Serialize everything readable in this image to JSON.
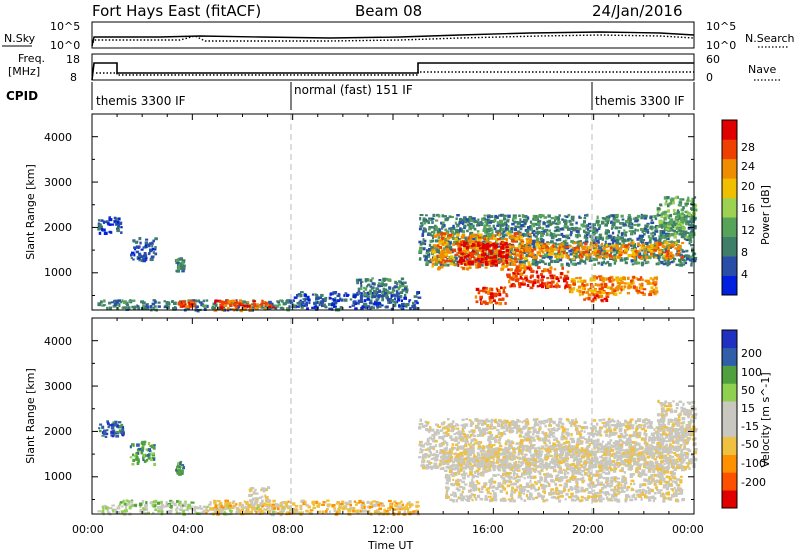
{
  "header": {
    "station": "Fort Hays East (fitACF)",
    "beam": "Beam 08",
    "date": "24/Jan/2016"
  },
  "top_panels": {
    "nsky_label": "N.Sky",
    "nsky_ticks": [
      "10^5",
      "10^0"
    ],
    "nsearch_label": "N.Search",
    "nsearch_ticks": [
      "10^5",
      "10^0"
    ],
    "freq_label": "Freq.",
    "freq_unit": "[MHz]",
    "freq_ticks": [
      "18",
      "8"
    ],
    "nave_label": "Nave",
    "nave_ticks": [
      "60",
      "0"
    ],
    "cpid_label": "CPID"
  },
  "cpid_segments": [
    {
      "label": "themis 3300 IF",
      "start_hour": 0,
      "end_hour": 8
    },
    {
      "label": "normal (fast) 151 IF",
      "start_hour": 8,
      "end_hour": 20
    },
    {
      "label": "themis 3300 IF",
      "start_hour": 20,
      "end_hour": 24
    }
  ],
  "colors": {
    "power": [
      "#0020e0",
      "#2a4ea8",
      "#3f7f6a",
      "#57a35a",
      "#9cd250",
      "#f0c000",
      "#f08c00",
      "#f04000",
      "#e00000"
    ],
    "velocity": [
      "#e00000",
      "#ff5000",
      "#ff9000",
      "#f0c040",
      "#c8c8c0",
      "#c8c8c0",
      "#90d050",
      "#50a040",
      "#305ea8",
      "#2030c0"
    ]
  },
  "chart_data": [
    {
      "type": "heatmap",
      "parameter": "power",
      "xlabel": "",
      "ylabel": "Slant Range [km]",
      "x_ticks": [
        "00:00",
        "04:00",
        "08:00",
        "12:00",
        "16:00",
        "20:00",
        "00:00"
      ],
      "xlim_hours": [
        0,
        24
      ],
      "y_ticks": [
        "4000",
        "3000",
        "2000",
        "1000"
      ],
      "ylim_km": [
        180,
        4500
      ],
      "colorbar": {
        "label": "Power [dB]",
        "ticks": [
          "28",
          "24",
          "20",
          "16",
          "12",
          "8",
          "4"
        ],
        "range": [
          0,
          30
        ]
      },
      "regions": [
        {
          "t0": 0.2,
          "t1": 8.0,
          "r0": 200,
          "r1": 420,
          "level": 2
        },
        {
          "t0": 4.8,
          "t1": 7.2,
          "r0": 200,
          "r1": 420,
          "level": 7
        },
        {
          "t0": 3.4,
          "t1": 4.0,
          "r0": 280,
          "r1": 400,
          "level": 7
        },
        {
          "t0": 0.2,
          "t1": 1.2,
          "r0": 1900,
          "r1": 2250,
          "level": 1
        },
        {
          "t0": 1.5,
          "t1": 2.5,
          "r0": 1300,
          "r1": 1800,
          "level": 1
        },
        {
          "t0": 3.3,
          "t1": 3.6,
          "r0": 1050,
          "r1": 1350,
          "level": 2
        },
        {
          "t0": 8.0,
          "t1": 13.0,
          "r0": 220,
          "r1": 600,
          "level": 1
        },
        {
          "t0": 10.5,
          "t1": 12.5,
          "r0": 500,
          "r1": 900,
          "level": 2
        },
        {
          "t0": 13.0,
          "t1": 24.0,
          "r0": 1200,
          "r1": 2300,
          "level": 2
        },
        {
          "t0": 13.5,
          "t1": 17.5,
          "r0": 1100,
          "r1": 1900,
          "level": 6
        },
        {
          "t0": 14.5,
          "t1": 16.5,
          "r0": 1200,
          "r1": 1700,
          "level": 8
        },
        {
          "t0": 17.5,
          "t1": 23.5,
          "r0": 1350,
          "r1": 1700,
          "level": 6
        },
        {
          "t0": 16.5,
          "t1": 19.0,
          "r0": 700,
          "r1": 1150,
          "level": 7
        },
        {
          "t0": 19.0,
          "t1": 22.5,
          "r0": 550,
          "r1": 950,
          "level": 6
        },
        {
          "t0": 15.2,
          "t1": 16.5,
          "r0": 350,
          "r1": 700,
          "level": 7
        },
        {
          "t0": 19.5,
          "t1": 20.5,
          "r0": 400,
          "r1": 600,
          "level": 7
        },
        {
          "t0": 22.5,
          "t1": 24.0,
          "r0": 1800,
          "r1": 2700,
          "level": 3
        }
      ]
    },
    {
      "type": "heatmap",
      "parameter": "velocity",
      "xlabel": "Time UT",
      "ylabel": "Slant Range [km]",
      "x_ticks": [
        "00:00",
        "04:00",
        "08:00",
        "12:00",
        "16:00",
        "20:00",
        "00:00"
      ],
      "xlim_hours": [
        0,
        24
      ],
      "y_ticks": [
        "4000",
        "3000",
        "2000",
        "1000"
      ],
      "ylim_km": [
        180,
        4500
      ],
      "colorbar": {
        "label": "Velocity [m s^-1]",
        "ticks": [
          "200",
          "100",
          "50",
          "15",
          "-15",
          "-50",
          "-100",
          "-200"
        ],
        "range": [
          -250,
          250
        ]
      },
      "regions": [
        {
          "t0": 0.2,
          "t1": 8.0,
          "r0": 200,
          "r1": 420,
          "level": 5
        },
        {
          "t0": 1.0,
          "t1": 4.0,
          "r0": 380,
          "r1": 500,
          "level": 6
        },
        {
          "t0": 0.2,
          "t1": 1.2,
          "r0": 1900,
          "r1": 2250,
          "level": 8
        },
        {
          "t0": 1.5,
          "t1": 2.5,
          "r0": 1300,
          "r1": 1800,
          "level": 7
        },
        {
          "t0": 3.3,
          "t1": 3.6,
          "r0": 1050,
          "r1": 1350,
          "level": 7
        },
        {
          "t0": 4.5,
          "t1": 13.0,
          "r0": 200,
          "r1": 500,
          "level": 3
        },
        {
          "t0": 6.2,
          "t1": 7.0,
          "r0": 400,
          "r1": 800,
          "level": 4
        },
        {
          "t0": 13.0,
          "t1": 24.0,
          "r0": 1200,
          "r1": 2300,
          "level": 4
        },
        {
          "t0": 14.0,
          "t1": 23.5,
          "r0": 500,
          "r1": 1700,
          "level": 4
        },
        {
          "t0": 22.5,
          "t1": 24.0,
          "r0": 1800,
          "r1": 2700,
          "level": 4
        }
      ]
    }
  ]
}
